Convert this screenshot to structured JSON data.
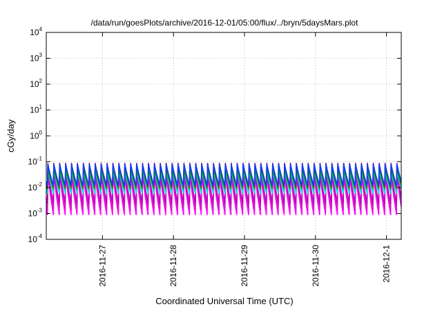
{
  "chart_data": {
    "type": "line",
    "title": "/data/run/goesPlots/archive/2016-12-01/05:00/flux/../bryn/5daysMars.plot",
    "xlabel": "Coordinated Universal Time (UTC)",
    "ylabel": "cGy/day",
    "yscale": "log",
    "ylim": [
      0.0001,
      10000
    ],
    "xlim": [
      "2016-11-26T05:00",
      "2016-12-01T05:00"
    ],
    "grid": true,
    "legend": "none",
    "x_ticks": [
      "2016-11-27",
      "2016-11-28",
      "2016-11-29",
      "2016-11-30",
      "2016-12-1"
    ],
    "y_ticks": [
      {
        "base": "10",
        "exp": "4"
      },
      {
        "base": "10",
        "exp": "3"
      },
      {
        "base": "10",
        "exp": "2"
      },
      {
        "base": "10",
        "exp": "1"
      },
      {
        "base": "10",
        "exp": "0"
      },
      {
        "base": "10",
        "exp": "-1"
      },
      {
        "base": "10",
        "exp": "-2"
      },
      {
        "base": "10",
        "exp": "-3"
      },
      {
        "base": "10",
        "exp": "-4"
      }
    ],
    "cycle_hours": 2,
    "series": [
      {
        "color": "#ff00ff",
        "peak": 0.035,
        "trough": 0.0009
      },
      {
        "color": "#d020c0",
        "peak": 0.045,
        "trough": 0.0015
      },
      {
        "color": "#c000c0",
        "peak": 0.05,
        "trough": 0.0025
      },
      {
        "color": "#00c0a0",
        "peak": 0.06,
        "trough": 0.008
      },
      {
        "color": "#00e0e0",
        "peak": 0.05,
        "trough": 0.006
      },
      {
        "color": "#00a000",
        "peak": 0.055,
        "trough": 0.009
      },
      {
        "color": "#e00030",
        "peak": 0.09,
        "trough": 0.011
      },
      {
        "color": "#0040ff",
        "peak": 0.085,
        "trough": 0.012
      }
    ]
  }
}
